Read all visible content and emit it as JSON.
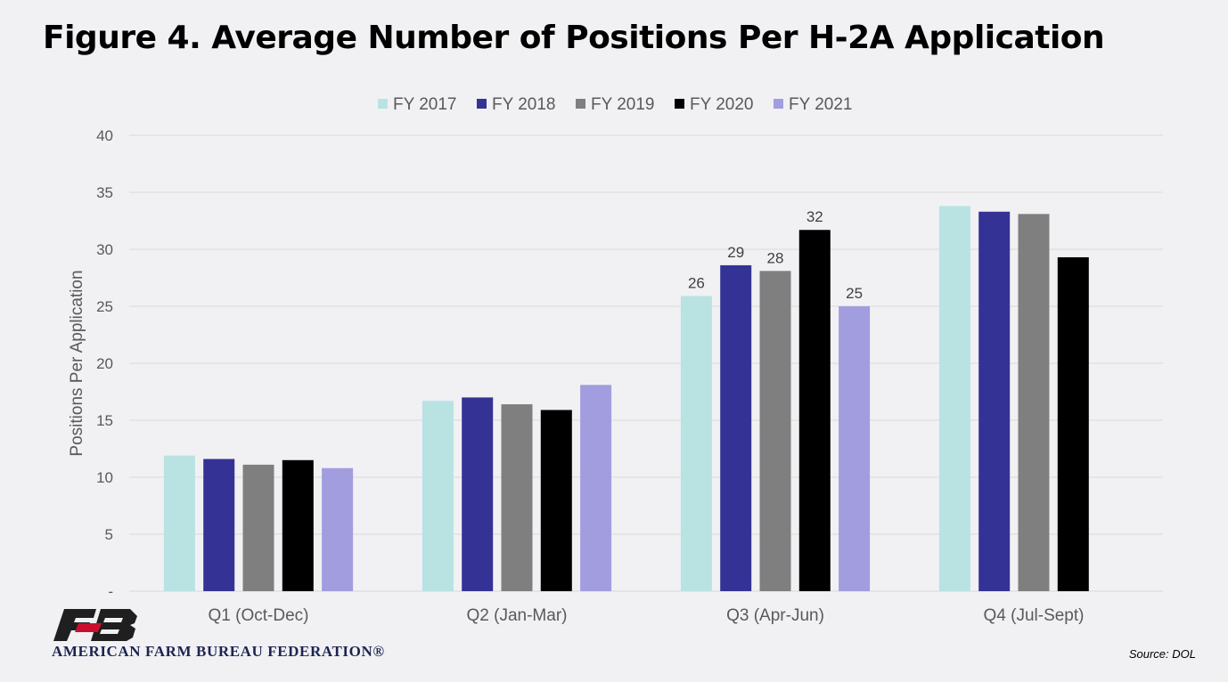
{
  "title": "Figure 4. Average Number of Positions Per H-2A Application",
  "source": "Source: DOL",
  "organization": "AMERICAN FARM BUREAU FEDERATION®",
  "chart_data": {
    "type": "bar",
    "categories": [
      "Q1 (Oct-Dec)",
      "Q2 (Jan-Mar)",
      "Q3 (Apr-Jun)",
      "Q4 (Jul-Sept)"
    ],
    "series": [
      {
        "name": "FY 2017",
        "color": "#b9e2e3",
        "values": [
          11.9,
          16.7,
          25.9,
          33.8
        ]
      },
      {
        "name": "FY 2018",
        "color": "#353296",
        "values": [
          11.6,
          17.0,
          28.6,
          33.3
        ]
      },
      {
        "name": "FY 2019",
        "color": "#7f7f7f",
        "values": [
          11.1,
          16.4,
          28.1,
          33.1
        ]
      },
      {
        "name": "FY 2020",
        "color": "#000000",
        "values": [
          11.5,
          15.9,
          31.7,
          29.3
        ]
      },
      {
        "name": "FY 2021",
        "color": "#a29ddf",
        "values": [
          10.8,
          18.1,
          25.0,
          null
        ]
      }
    ],
    "data_labels": {
      "category_index": 2,
      "labels": [
        "26",
        "29",
        "28",
        "32",
        "25"
      ]
    },
    "ylabel": "Positions Per Application",
    "yticks": [
      "-",
      "5",
      "10",
      "15",
      "20",
      "25",
      "30",
      "35",
      "40"
    ],
    "ylim": [
      0,
      40
    ],
    "grid": true,
    "legend_position": "top"
  }
}
